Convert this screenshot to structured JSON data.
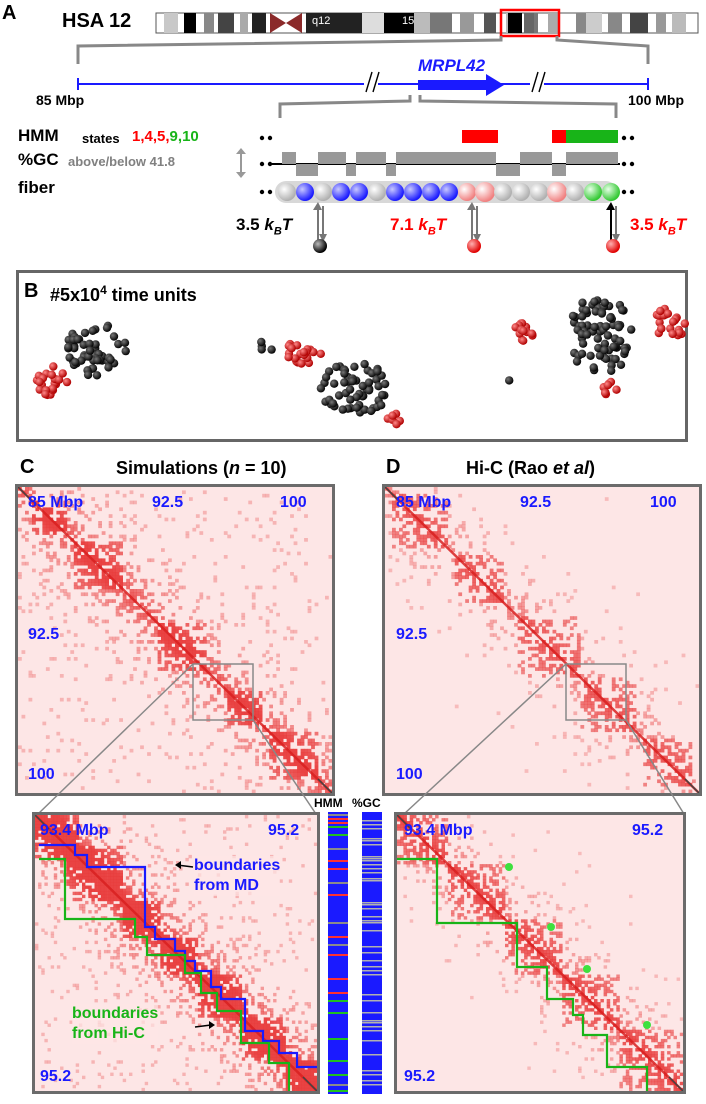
{
  "panelA": {
    "letter": "A",
    "chrom": "HSA 12",
    "band_q12": "q12",
    "band_15": "15",
    "left_coord": "85 Mbp",
    "right_coord": "100 Mbp",
    "gene": "MRPL42",
    "hmm_label": "HMM",
    "states_prefix": "states",
    "states": [
      {
        "text": "1,",
        "color": "#ff0000"
      },
      {
        "text": "4,",
        "color": "#ff0000"
      },
      {
        "text": "5,",
        "color": "#ff0000"
      },
      {
        "text": "9,",
        "color": "#18b418"
      },
      {
        "text": "10",
        "color": "#18b418"
      }
    ],
    "gc_label": "%GC",
    "gc_threshold": "above/below 41.8",
    "fiber_label": "fiber",
    "energy_left": "3.5",
    "energy_mid": "7.1",
    "energy_right": "3.5",
    "kbt_k": "k",
    "kbt_sub": "B",
    "kbt_t": "T"
  },
  "panelB": {
    "letter": "B",
    "title_prefix": "#5x10",
    "title_exp": "4",
    "title_suffix": " time units"
  },
  "panelC": {
    "letter": "C",
    "title": "Simulations (",
    "title_n": "n",
    "title_rest": " = 10)",
    "map_top_left": "85 Mbp",
    "map_top_mid": "92.5",
    "map_top_right": "100",
    "map_left_mid": "92.5",
    "map_left_bottom": "100",
    "zoom_top_left": "93.4 Mbp",
    "zoom_top_right": "95.2",
    "zoom_bottom_left": "95.2",
    "annot_md_line1": "boundaries",
    "annot_md_line2": "from MD",
    "annot_hic_line1": "boundaries",
    "annot_hic_line2": "from Hi-C",
    "track_hmm": "HMM",
    "track_gc": "%GC"
  },
  "panelD": {
    "letter": "D",
    "title": "Hi-C (Rao ",
    "title_it": "et al",
    "title_end": ")",
    "map_top_left": "85 Mbp",
    "map_top_mid": "92.5",
    "map_top_right": "100",
    "map_left_mid": "92.5",
    "map_left_bottom": "100",
    "zoom_top_left": "93.4 Mbp",
    "zoom_top_right": "95.2",
    "zoom_bottom_left": "95.2"
  },
  "colors": {
    "map_bg": "#fde6e6",
    "map_diag": "#e83a3a",
    "blue": "#1a1aff",
    "red": "#ff0000",
    "green": "#18b418",
    "gray": "#808080"
  }
}
